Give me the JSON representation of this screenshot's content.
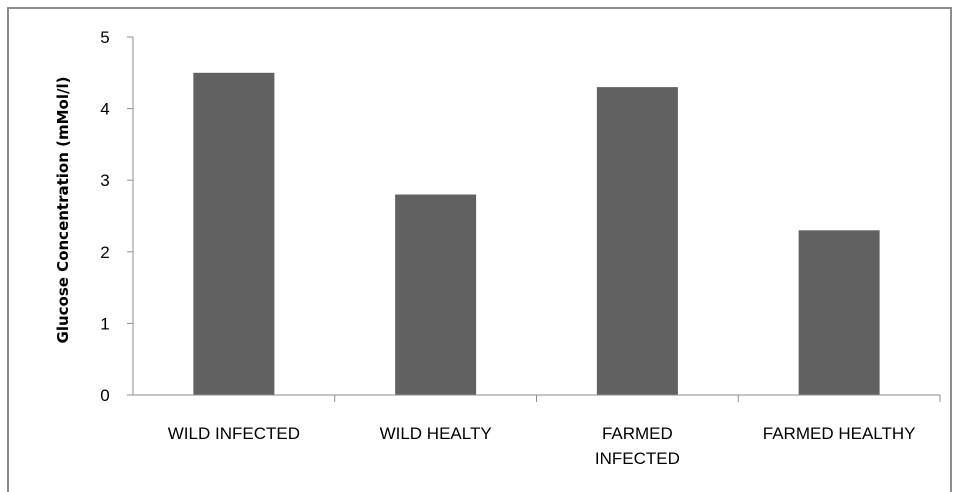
{
  "chart_data": {
    "type": "bar",
    "categories": [
      "WILD INFECTED",
      "WILD HEALTY",
      "FARMED INFECTED",
      "FARMED HEALTHY"
    ],
    "category_lines": [
      [
        "WILD INFECTED"
      ],
      [
        "WILD HEALTY"
      ],
      [
        "FARMED",
        "INFECTED"
      ],
      [
        "FARMED HEALTHY"
      ]
    ],
    "values": [
      4.5,
      2.8,
      4.3,
      2.3
    ],
    "title": "",
    "xlabel": "",
    "ylabel": "Glucose Concentration (mMol/l)",
    "ylim": [
      0,
      5
    ],
    "yticks": [
      "0",
      "1",
      "2",
      "3",
      "4",
      "5"
    ],
    "grid": false,
    "legend": "none",
    "bar_color": "#616161",
    "axis_color": "#8c8c8c"
  }
}
